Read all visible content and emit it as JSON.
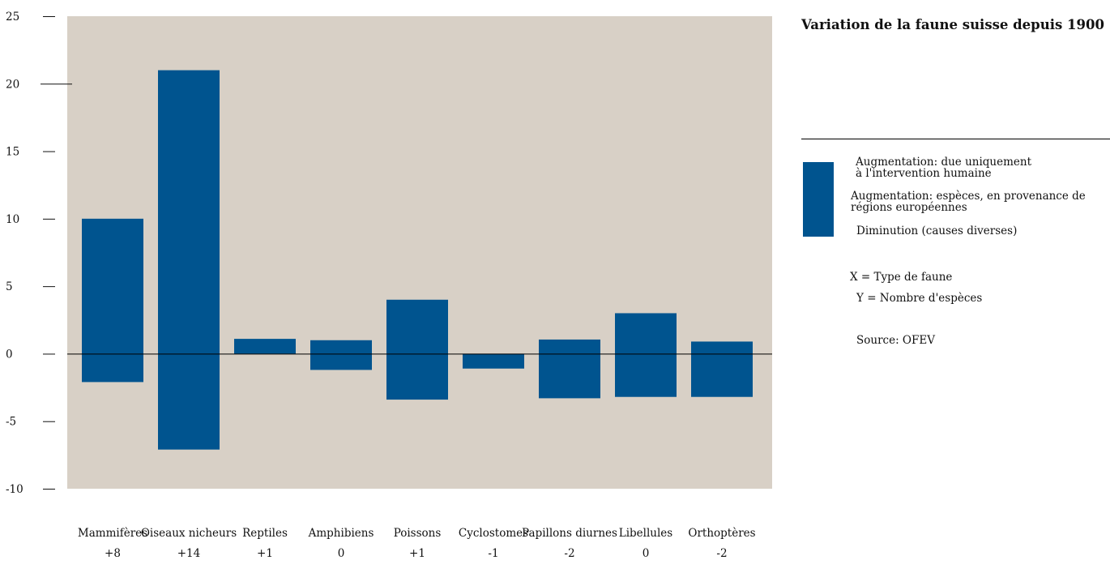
{
  "chart_data": {
    "type": "bar",
    "title": "Variation de la faune suisse depuis 1900",
    "categories": [
      "Mammifères",
      "Oiseaux nicheurs",
      "Reptiles",
      "Amphibiens",
      "Poissons",
      "Cyclostomes",
      "Papillons diurnes",
      "Libellules",
      "Orthoptères"
    ],
    "net_labels": [
      "+8",
      "+14",
      "+1",
      "0",
      "+1",
      "-1",
      "-2",
      "0",
      "-2"
    ],
    "series": [
      {
        "name": "Augmentation",
        "values": [
          10,
          21,
          1.1,
          1,
          4,
          0,
          1.05,
          3,
          0.9
        ]
      },
      {
        "name": "Diminution",
        "values": [
          -2.1,
          -7.1,
          0,
          -1.2,
          -3.4,
          -1.1,
          -3.3,
          -3.2,
          -3.2
        ]
      }
    ],
    "ylim": [
      -10,
      25
    ],
    "yticks": [
      25,
      20,
      15,
      10,
      5,
      0,
      -5,
      -10
    ],
    "ytick_labels": [
      "25",
      "20",
      "15",
      "10",
      "5",
      "0",
      "-5",
      "-10"
    ],
    "grid": false,
    "legend_position": "right",
    "legend": [
      "Augmentation: due uniquement\nà l'intervention humaine",
      "Augmentation: espèces, en provenance de\nrégions européennes",
      "Diminution (causes diverses)"
    ],
    "colors": {
      "bar": "#00548f",
      "plot_bg": "#d8d0c6",
      "axis": "#111111"
    }
  },
  "notes": {
    "x_axis": "X = Type de faune",
    "y_axis": "Y = Nombre d'espèces",
    "source": "Source: OFEV"
  }
}
